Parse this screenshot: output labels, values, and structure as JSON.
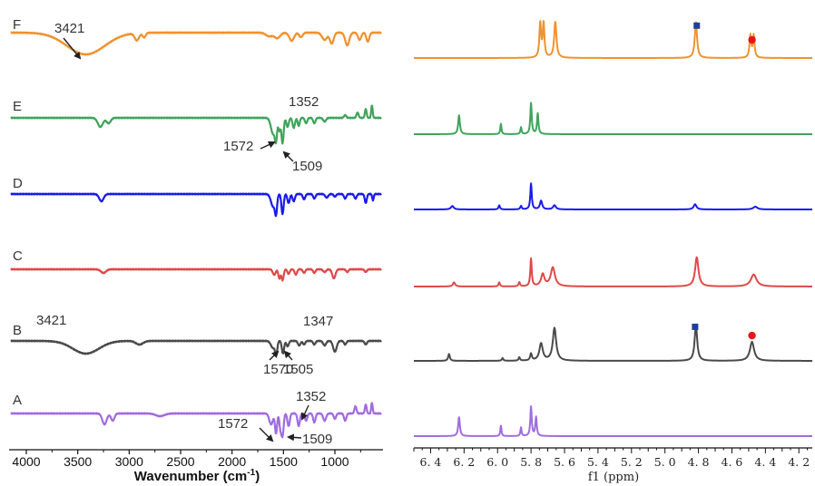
{
  "chart_data": [
    {
      "type": "line",
      "panel": "ir",
      "xlabel": "Wavenumber (cm⁻¹)",
      "xlabel_text": "Wavenumber (cm",
      "xlabel_sup": "-1",
      "xlabel_close": ")",
      "xlim": [
        4150,
        550
      ],
      "ticks": [
        4000,
        3500,
        3000,
        2500,
        2000,
        1500,
        1000
      ],
      "tick_labels": [
        "4000",
        "3500",
        "3000",
        "2500",
        "2000",
        "1500",
        "1000"
      ],
      "series": [
        {
          "name": "F",
          "color": "#f0922e",
          "features": [
            [
              3421,
              -24,
              260
            ],
            [
              2925,
              -8,
              30
            ],
            [
              2855,
              -5,
              22
            ],
            [
              1640,
              -4,
              45
            ],
            [
              1560,
              -6,
              40
            ],
            [
              1420,
              -9,
              32
            ],
            [
              1330,
              -5,
              24
            ],
            [
              1100,
              -8,
              35
            ],
            [
              1030,
              -12,
              26
            ],
            [
              880,
              -14,
              28
            ],
            [
              760,
              -8,
              22
            ],
            [
              680,
              -10,
              20
            ]
          ]
        },
        {
          "name": "E",
          "color": "#3fa45b",
          "features": [
            [
              3280,
              -10,
              35
            ],
            [
              3200,
              -6,
              28
            ],
            [
              1600,
              -18,
              30
            ],
            [
              1572,
              -20,
              14
            ],
            [
              1540,
              -14,
              14
            ],
            [
              1509,
              -28,
              15
            ],
            [
              1460,
              -10,
              16
            ],
            [
              1400,
              -11,
              16
            ],
            [
              1352,
              -9,
              14
            ],
            [
              1280,
              -6,
              16
            ],
            [
              1200,
              -6,
              16
            ],
            [
              1100,
              -4,
              20
            ],
            [
              900,
              3,
              16
            ],
            [
              780,
              6,
              14
            ],
            [
              700,
              10,
              12
            ],
            [
              640,
              14,
              10
            ]
          ]
        },
        {
          "name": "D",
          "color": "#1a1aeb",
          "features": [
            [
              3270,
              -8,
              30
            ],
            [
              1600,
              -14,
              30
            ],
            [
              1572,
              -18,
              14
            ],
            [
              1509,
              -22,
              15
            ],
            [
              1450,
              -10,
              16
            ],
            [
              1400,
              -8,
              16
            ],
            [
              1300,
              -6,
              16
            ],
            [
              1200,
              -5,
              16
            ],
            [
              1080,
              -4,
              20
            ],
            [
              1000,
              -3,
              16
            ],
            [
              900,
              -5,
              16
            ],
            [
              800,
              -5,
              16
            ],
            [
              700,
              -10,
              14
            ],
            [
              630,
              -7,
              10
            ]
          ]
        },
        {
          "name": "C",
          "color": "#e04848",
          "features": [
            [
              3250,
              -4,
              35
            ],
            [
              1590,
              -6,
              20
            ],
            [
              1540,
              -10,
              14
            ],
            [
              1509,
              -12,
              15
            ],
            [
              1450,
              -5,
              16
            ],
            [
              1380,
              -6,
              16
            ],
            [
              1300,
              -4,
              16
            ],
            [
              1200,
              -4,
              16
            ],
            [
              1100,
              -3,
              20
            ],
            [
              1010,
              -10,
              22
            ],
            [
              880,
              -3,
              16
            ],
            [
              700,
              -3,
              16
            ]
          ]
        },
        {
          "name": "B",
          "color": "#4a4a4a",
          "features": [
            [
              3421,
              -14,
              180
            ],
            [
              2900,
              -4,
              50
            ],
            [
              1600,
              -8,
              30
            ],
            [
              1570,
              -13,
              14
            ],
            [
              1505,
              -14,
              15
            ],
            [
              1460,
              -6,
              16
            ],
            [
              1347,
              -5,
              18
            ],
            [
              1300,
              -4,
              16
            ],
            [
              1200,
              -4,
              16
            ],
            [
              1100,
              -5,
              20
            ],
            [
              1000,
              -12,
              24
            ],
            [
              900,
              -4,
              16
            ],
            [
              700,
              -4,
              16
            ]
          ]
        },
        {
          "name": "A",
          "color": "#a06ce0",
          "features": [
            [
              3240,
              -12,
              30
            ],
            [
              3160,
              -8,
              24
            ],
            [
              2700,
              -3,
              60
            ],
            [
              1620,
              -12,
              25
            ],
            [
              1572,
              -22,
              14
            ],
            [
              1530,
              -16,
              14
            ],
            [
              1509,
              -24,
              15
            ],
            [
              1450,
              -14,
              16
            ],
            [
              1352,
              -14,
              16
            ],
            [
              1280,
              -8,
              16
            ],
            [
              1200,
              -10,
              16
            ],
            [
              1100,
              -8,
              20
            ],
            [
              1000,
              -6,
              16
            ],
            [
              900,
              -8,
              16
            ],
            [
              800,
              8,
              14
            ],
            [
              700,
              10,
              12
            ],
            [
              640,
              12,
              10
            ]
          ]
        }
      ],
      "annotations": [
        {
          "series": "F",
          "text": "3421"
        },
        {
          "series": "E",
          "text": "1352"
        },
        {
          "series": "E",
          "text": "1572"
        },
        {
          "series": "E",
          "text": "1509"
        },
        {
          "series": "B",
          "text": "3421"
        },
        {
          "series": "B",
          "text": "1347"
        },
        {
          "series": "B",
          "text": "1570"
        },
        {
          "series": "B",
          "text": "1505"
        },
        {
          "series": "A",
          "text": "1352"
        },
        {
          "series": "A",
          "text": "1572"
        },
        {
          "series": "A",
          "text": "1509"
        }
      ]
    },
    {
      "type": "line",
      "panel": "nmr",
      "xlabel": "f1 (ppm)",
      "xlim": [
        6.5,
        4.12
      ],
      "ticks": [
        6.4,
        6.2,
        6.0,
        5.8,
        5.6,
        5.4,
        5.2,
        5.0,
        4.8,
        4.6,
        4.4,
        4.2
      ],
      "tick_labels": [
        "6. 4",
        "6. 2",
        "6. 0",
        "5. 8",
        "5. 6",
        "5. 4",
        "5. 2",
        "5. 0",
        "4. 8",
        "4. 6",
        "4. 4",
        "4. 2"
      ],
      "markers": [
        {
          "series": "F",
          "shape": "square",
          "x": 4.81,
          "color": "#1f3f99"
        },
        {
          "series": "F",
          "shape": "circle",
          "x": 4.48,
          "color": "#e8141c"
        },
        {
          "series": "B",
          "shape": "square",
          "x": 4.82,
          "color": "#1f3f99"
        },
        {
          "series": "B",
          "shape": "circle",
          "x": 4.48,
          "color": "#e8141c"
        }
      ],
      "series": [
        {
          "name": "F",
          "color": "#f0922e",
          "peaks": [
            [
              5.745,
              1.0,
              0.006
            ],
            [
              5.725,
              1.0,
              0.006
            ],
            [
              5.655,
              1.05,
              0.008
            ],
            [
              4.815,
              1.05,
              0.008
            ],
            [
              4.49,
              0.65,
              0.006
            ],
            [
              4.47,
              0.65,
              0.006
            ]
          ]
        },
        {
          "name": "E",
          "color": "#3fa45b",
          "peaks": [
            [
              6.23,
              0.55,
              0.006
            ],
            [
              5.98,
              0.3,
              0.004
            ],
            [
              5.86,
              0.2,
              0.004
            ],
            [
              5.8,
              0.9,
              0.005
            ],
            [
              5.76,
              0.6,
              0.005
            ]
          ]
        },
        {
          "name": "D",
          "color": "#1a1aeb",
          "peaks": [
            [
              6.27,
              0.1,
              0.01
            ],
            [
              5.99,
              0.12,
              0.005
            ],
            [
              5.86,
              0.1,
              0.005
            ],
            [
              5.8,
              0.75,
              0.005
            ],
            [
              5.74,
              0.25,
              0.008
            ],
            [
              5.66,
              0.12,
              0.01
            ],
            [
              4.82,
              0.15,
              0.01
            ],
            [
              4.46,
              0.08,
              0.015
            ]
          ]
        },
        {
          "name": "C",
          "color": "#e04848",
          "peaks": [
            [
              6.26,
              0.12,
              0.008
            ],
            [
              5.99,
              0.12,
              0.005
            ],
            [
              5.87,
              0.12,
              0.005
            ],
            [
              5.8,
              0.8,
              0.005
            ],
            [
              5.73,
              0.35,
              0.012
            ],
            [
              5.67,
              0.55,
              0.015
            ],
            [
              4.81,
              0.85,
              0.012
            ],
            [
              4.47,
              0.35,
              0.02
            ]
          ]
        },
        {
          "name": "B",
          "color": "#4a4a4a",
          "peaks": [
            [
              6.29,
              0.2,
              0.006
            ],
            [
              5.97,
              0.08,
              0.005
            ],
            [
              5.87,
              0.1,
              0.005
            ],
            [
              5.8,
              0.2,
              0.006
            ],
            [
              5.74,
              0.5,
              0.012
            ],
            [
              5.66,
              0.95,
              0.012
            ],
            [
              4.815,
              1.05,
              0.009
            ],
            [
              4.48,
              0.55,
              0.015
            ]
          ]
        },
        {
          "name": "A",
          "color": "#a06ce0",
          "peaks": [
            [
              6.23,
              0.55,
              0.006
            ],
            [
              5.98,
              0.3,
              0.004
            ],
            [
              5.86,
              0.25,
              0.004
            ],
            [
              5.8,
              0.85,
              0.005
            ],
            [
              5.77,
              0.55,
              0.005
            ]
          ]
        }
      ]
    }
  ]
}
